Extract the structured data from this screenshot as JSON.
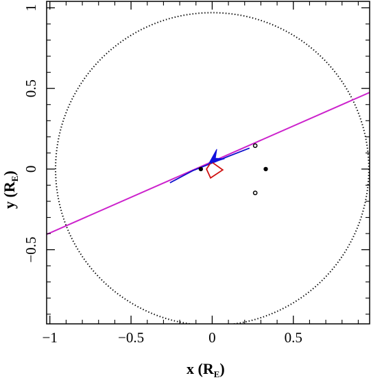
{
  "chart_data": {
    "type": "line",
    "xlabel": {
      "text": "x (R",
      "sub": "E",
      "close": ")"
    },
    "ylabel": {
      "text": "y (R",
      "sub": "E",
      "close": ")"
    },
    "xlim": [
      -1.02,
      0.97
    ],
    "ylim": [
      -0.96,
      1.04
    ],
    "x_ticks": [
      "−1",
      "−0.5",
      "0",
      "0.5"
    ],
    "y_ticks": [
      "1",
      "0.5",
      "0",
      "−0.5"
    ],
    "x_tick_values": [
      -1,
      -0.5,
      0,
      0.5
    ],
    "y_tick_values": [
      1,
      0.5,
      0,
      -0.5
    ],
    "grid": false,
    "einstein_ring": {
      "center": [
        0,
        0
      ],
      "radius": 0.965,
      "style": "dotted",
      "color": "#000000"
    },
    "trajectory": {
      "color": "#cc22cc",
      "points": [
        [
          -1.02,
          -0.405
        ],
        [
          0.97,
          0.475
        ]
      ]
    },
    "caustic": {
      "color": "#d01010",
      "vertices": [
        [
          -0.005,
          0.045
        ],
        [
          0.065,
          -0.005
        ],
        [
          -0.01,
          -0.055
        ],
        [
          -0.035,
          0.0
        ]
      ]
    },
    "lens_masses": {
      "color": "#000000",
      "points": [
        [
          -0.07,
          0.0
        ],
        [
          0.33,
          0.0
        ]
      ]
    },
    "planet_marks": {
      "color": "#000000",
      "points": [
        [
          0.265,
          0.145
        ],
        [
          0.265,
          -0.148
        ]
      ]
    },
    "images_track": {
      "color": "#1010cc",
      "points": [
        [
          -0.26,
          -0.085
        ],
        [
          -0.12,
          -0.01
        ],
        [
          0.005,
          0.04
        ],
        [
          0.09,
          0.075
        ],
        [
          0.23,
          0.13
        ]
      ]
    },
    "arrow": {
      "color": "#1010dd",
      "tip": [
        -0.02,
        0.035
      ],
      "tail": [
        0.06,
        0.1
      ]
    },
    "colors": {
      "axes": "#000000",
      "ring": "#000000",
      "trajectory": "#cc22cc",
      "caustic": "#d01010",
      "track": "#1010cc"
    }
  }
}
